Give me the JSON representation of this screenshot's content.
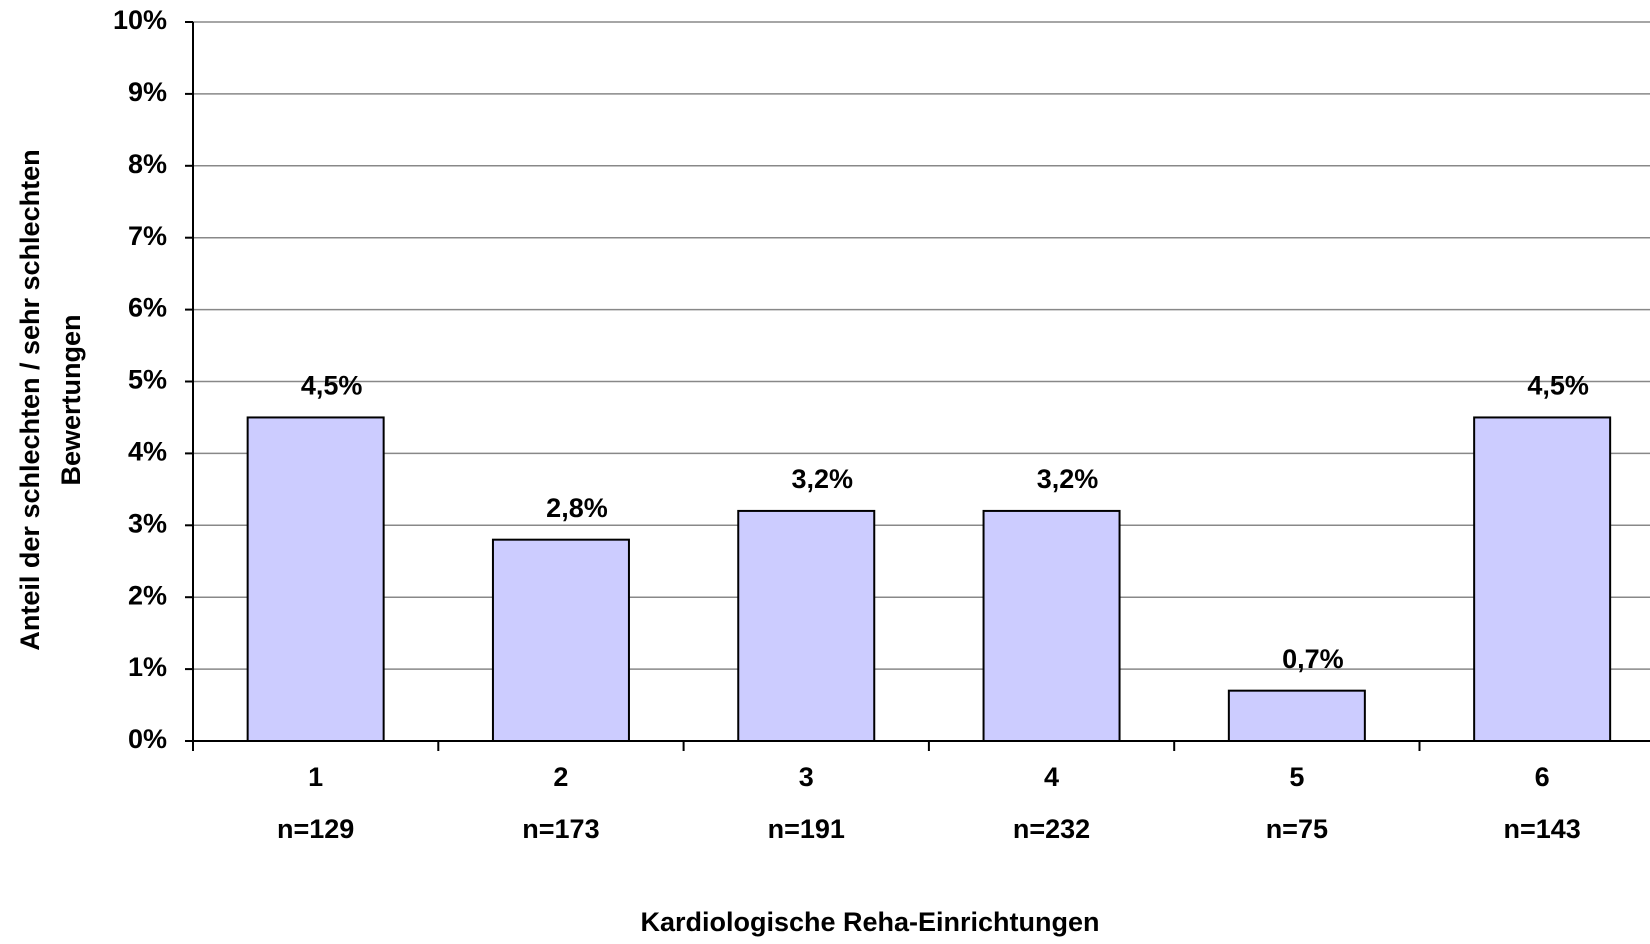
{
  "chart_data": {
    "type": "bar",
    "xlabel": "Kardiologische Reha-Einrichtungen",
    "ylabel": [
      "Anteil der schlechten / sehr schlechten",
      "Bewertungen"
    ],
    "categories": [
      "1",
      "2",
      "3",
      "4",
      "5",
      "6"
    ],
    "category_sublabels": [
      "n=129",
      "n=173",
      "n=191",
      "n=232",
      "n=75",
      "n=143"
    ],
    "values": [
      4.5,
      2.8,
      3.2,
      3.2,
      0.7,
      4.5
    ],
    "value_labels": [
      "4,5%",
      "2,8%",
      "3,2%",
      "3,2%",
      "0,7%",
      "4,5%"
    ],
    "color": "#ccccff",
    "ylim": [
      0,
      10
    ],
    "yticks": [
      {
        "value": 0,
        "label": "0%"
      },
      {
        "value": 1,
        "label": "1%"
      },
      {
        "value": 2,
        "label": "2%"
      },
      {
        "value": 3,
        "label": "3%"
      },
      {
        "value": 4,
        "label": "4%"
      },
      {
        "value": 5,
        "label": "5%"
      },
      {
        "value": 6,
        "label": "6%"
      },
      {
        "value": 7,
        "label": "7%"
      },
      {
        "value": 8,
        "label": "8%"
      },
      {
        "value": 9,
        "label": "9%"
      },
      {
        "value": 10,
        "label": "10%"
      }
    ],
    "grid": true
  }
}
